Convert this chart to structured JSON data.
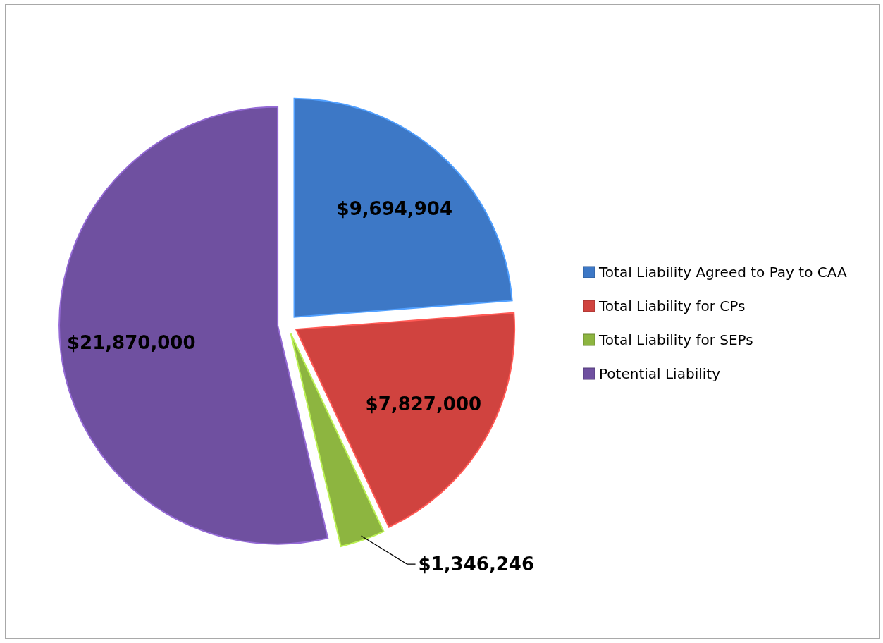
{
  "chart_data": {
    "type": "pie",
    "categories": [
      "Total Liability Agreed to Pay to CAA",
      "Total Liability for CPs",
      "Total Liability for SEPs",
      "Potential Liability"
    ],
    "values": [
      9694904,
      7827000,
      1346246,
      21870000
    ],
    "colors": [
      "#3d78c6",
      "#d0433f",
      "#8db540",
      "#6f50a0"
    ],
    "value_labels": [
      "$9,694,904",
      "$7,827,000",
      "$1,346,246",
      "$21,870,000"
    ],
    "legend": "right"
  }
}
